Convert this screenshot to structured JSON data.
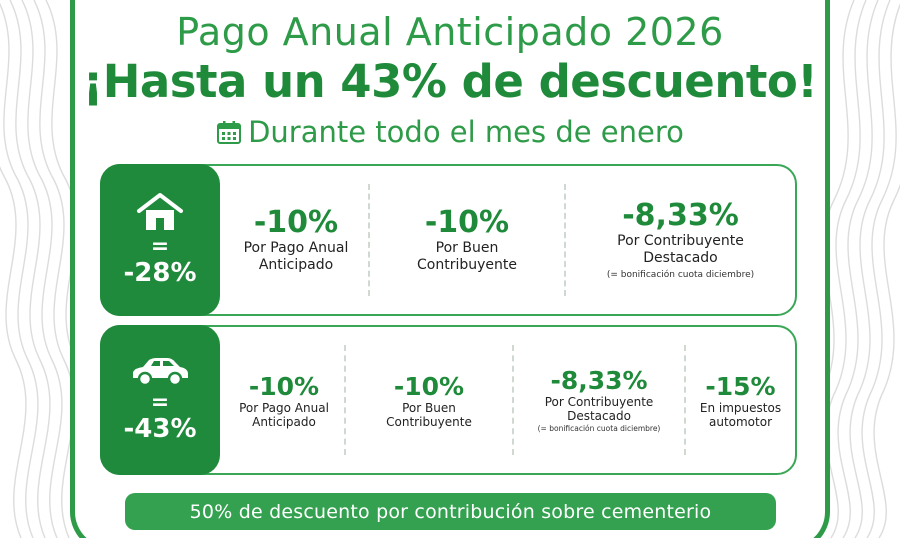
{
  "header": {
    "title": "Pago Anual Anticipado 2026",
    "headline": "¡Hasta un 43% de descuento!",
    "subtitle": "Durante todo el mes de enero",
    "icon": "calendar-icon"
  },
  "colors": {
    "brand_green": "#1e8a3a",
    "accent_green": "#33a14f",
    "border_green": "#3aa757"
  },
  "property_panel": {
    "icon": "house-icon",
    "equals": "=",
    "total": "-28%",
    "items": [
      {
        "pct": "-10%",
        "label_line1": "Por Pago Anual",
        "label_line2": "Anticipado"
      },
      {
        "pct": "-10%",
        "label_line1": "Por Buen",
        "label_line2": "Contribuyente"
      },
      {
        "pct": "-8,33%",
        "label_line1": "Por Contribuyente",
        "label_line2": "Destacado",
        "note": "(= bonificación cuota diciembre)"
      }
    ]
  },
  "vehicle_panel": {
    "icon": "car-icon",
    "equals": "=",
    "total": "-43%",
    "items": [
      {
        "pct": "-10%",
        "label_line1": "Por Pago Anual",
        "label_line2": "Anticipado"
      },
      {
        "pct": "-10%",
        "label_line1": "Por Buen",
        "label_line2": "Contribuyente"
      },
      {
        "pct": "-8,33%",
        "label_line1": "Por Contribuyente",
        "label_line2": "Destacado",
        "note": "(= bonificación cuota diciembre)"
      },
      {
        "pct": "-15%",
        "label_line1": "En impuestos",
        "label_line2": "automotor"
      }
    ]
  },
  "footer": {
    "cemetery_text": "50% de descuento por contribución sobre cementerio"
  }
}
